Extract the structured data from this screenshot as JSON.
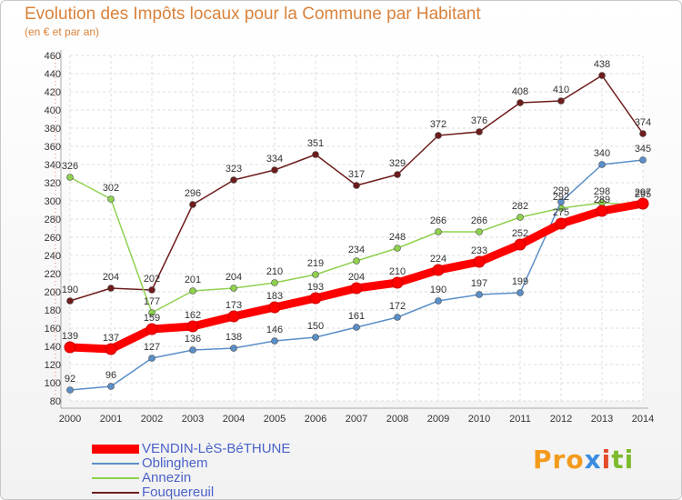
{
  "chart_data": {
    "type": "line",
    "title": "Evolution des Impôts locaux pour la Commune par Habitant",
    "subtitle": "(en € et par an)",
    "x": [
      "2000",
      "2001",
      "2002",
      "2003",
      "2004",
      "2005",
      "2006",
      "2007",
      "2008",
      "2009",
      "2010",
      "2011",
      "2012",
      "2013",
      "2014"
    ],
    "ylim": [
      80,
      460
    ],
    "yticks": [
      "80",
      "100",
      "120",
      "140",
      "160",
      "180",
      "200",
      "220",
      "240",
      "260",
      "280",
      "300",
      "320",
      "340",
      "360",
      "380",
      "400",
      "420",
      "440",
      "460"
    ],
    "grid": true,
    "series": [
      {
        "name": "Fouquereuil",
        "color": "#6e1c1c",
        "values": [
          190,
          204,
          202,
          296,
          323,
          334,
          351,
          317,
          329,
          372,
          376,
          408,
          410,
          438,
          374
        ],
        "labels": [
          "190",
          "204",
          "202",
          "296",
          "323",
          "334",
          "351",
          "317",
          "329",
          "372",
          "376",
          "408",
          "410",
          "438",
          "374"
        ]
      },
      {
        "name": "Annezin",
        "color": "#8fd14f",
        "values": [
          326,
          302,
          177,
          201,
          204,
          210,
          219,
          234,
          248,
          266,
          266,
          282,
          292,
          298,
          295
        ],
        "labels": [
          "326",
          "302",
          "177",
          "201",
          "204",
          "210",
          "219",
          "234",
          "248",
          "266",
          "266",
          "282",
          "292",
          "298",
          "295"
        ]
      },
      {
        "name": "Oblinghem",
        "color": "#5a8fc8",
        "values": [
          92,
          96,
          127,
          136,
          138,
          146,
          150,
          161,
          172,
          190,
          197,
          199,
          299,
          340,
          345
        ],
        "labels": [
          "92",
          "96",
          "127",
          "136",
          "138",
          "146",
          "150",
          "161",
          "172",
          "190",
          "197",
          "199",
          "299",
          "340",
          "345"
        ]
      },
      {
        "name": "VENDIN-LèS-BéTHUNE",
        "color": "#ff0000",
        "values": [
          139,
          137,
          159,
          162,
          173,
          183,
          193,
          204,
          210,
          224,
          233,
          252,
          275,
          289,
          297
        ],
        "labels": [
          "139",
          "137",
          "159",
          "162",
          "173",
          "183",
          "193",
          "204",
          "210",
          "224",
          "233",
          "252",
          "275",
          "289",
          "297"
        ]
      }
    ],
    "legend": {
      "position": "bottom-left",
      "items": [
        "VENDIN-LèS-BéTHUNE",
        "Oblinghem",
        "Annezin",
        "Fouquereuil"
      ],
      "colors": [
        "#ff0000",
        "#5a8fc8",
        "#8fd14f",
        "#6e1c1c"
      ]
    }
  },
  "logo": {
    "p1": "Pro",
    "p2": "x",
    "p3": "i",
    "p4": "ti"
  }
}
